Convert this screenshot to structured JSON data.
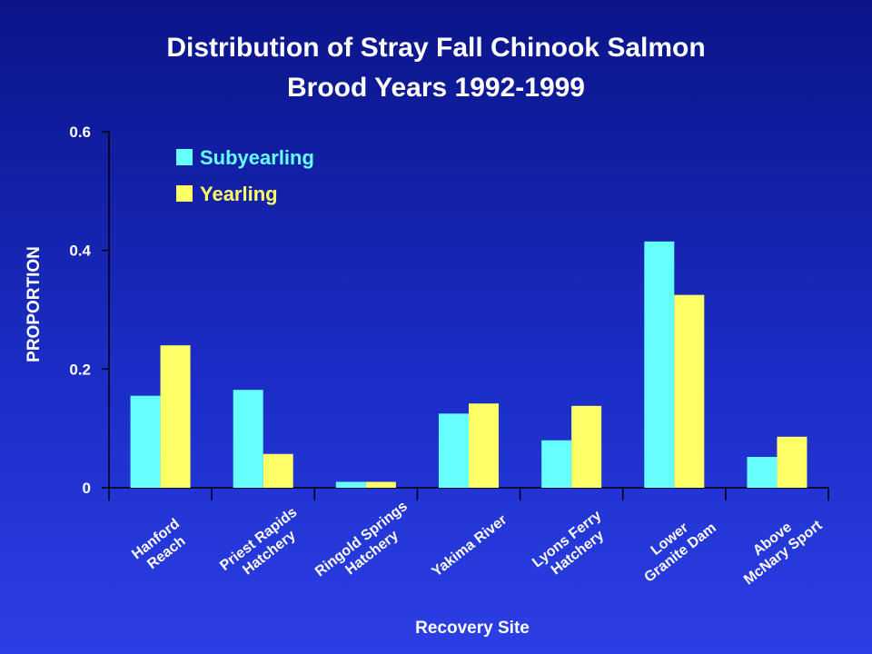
{
  "chart_data": {
    "type": "bar",
    "title_lines": [
      "Distribution of Stray Fall Chinook Salmon",
      "Brood Years 1992-1999"
    ],
    "xlabel": "Recovery Site",
    "ylabel": "PROPORTION",
    "ylim": [
      0,
      0.6
    ],
    "yticks": [
      "0",
      "0.2",
      "0.4",
      "0.6"
    ],
    "grid": false,
    "legend_position": "top-left",
    "categories": [
      [
        "Hanford",
        "Reach"
      ],
      [
        "Priest Rapids",
        "Hatchery"
      ],
      [
        "Ringold Springs",
        "Hatchery"
      ],
      [
        "Yakima River"
      ],
      [
        "Lyons Ferry",
        "Hatchery"
      ],
      [
        "Lower",
        "Granite Dam"
      ],
      [
        "Above",
        "McNary Sport"
      ]
    ],
    "series": [
      {
        "name": "Subyearling",
        "color": "#66ffff",
        "values": [
          0.155,
          0.165,
          0.01,
          0.125,
          0.08,
          0.415,
          0.052
        ]
      },
      {
        "name": "Yearling",
        "color": "#ffff66",
        "values": [
          0.24,
          0.057,
          0.01,
          0.142,
          0.138,
          0.325,
          0.086
        ]
      }
    ]
  }
}
